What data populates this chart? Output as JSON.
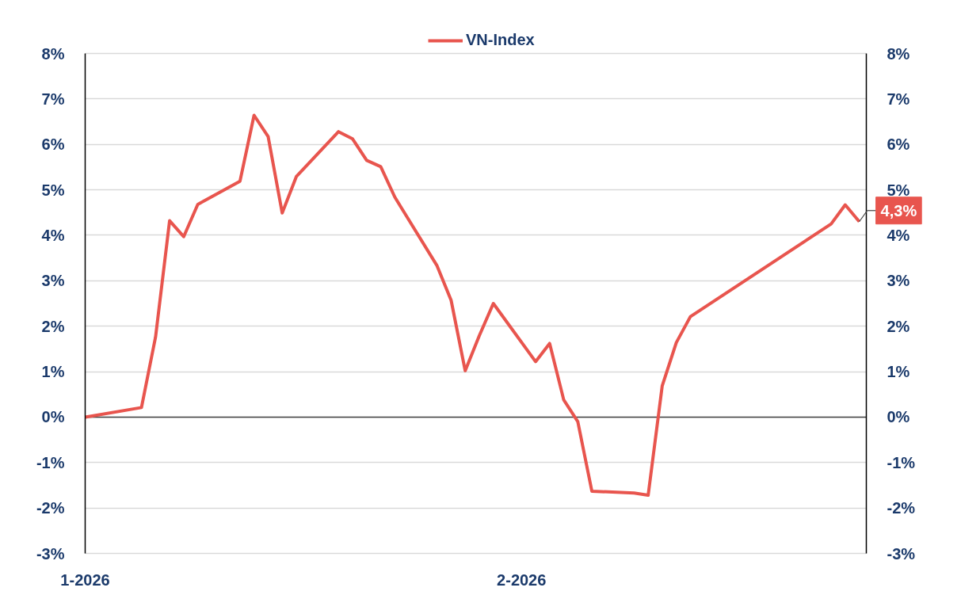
{
  "chart_data": {
    "type": "line",
    "x": [
      "2026-01-01",
      "2026-01-05",
      "2026-01-06",
      "2026-01-07",
      "2026-01-08",
      "2026-01-09",
      "2026-01-12",
      "2026-01-13",
      "2026-01-14",
      "2026-01-15",
      "2026-01-16",
      "2026-01-19",
      "2026-01-20",
      "2026-01-21",
      "2026-01-22",
      "2026-01-23",
      "2026-01-26",
      "2026-01-27",
      "2026-01-28",
      "2026-01-29",
      "2026-01-30",
      "2026-02-02",
      "2026-02-03",
      "2026-02-04",
      "2026-02-05",
      "2026-02-06",
      "2026-02-09",
      "2026-02-10",
      "2026-02-11",
      "2026-02-12",
      "2026-02-13",
      "2026-02-23",
      "2026-02-24",
      "2026-02-25"
    ],
    "series": [
      {
        "name": "VN-Index",
        "color": "#e8554e",
        "values": [
          0,
          0.21,
          1.76,
          4.32,
          3.97,
          4.68,
          5.19,
          6.64,
          6.17,
          4.49,
          5.29,
          6.28,
          6.12,
          5.65,
          5.51,
          4.84,
          3.33,
          2.57,
          1.02,
          1.79,
          2.5,
          1.22,
          1.62,
          0.38,
          -0.1,
          -1.63,
          -1.67,
          -1.72,
          0.69,
          1.64,
          2.21,
          4.25,
          4.67,
          4.3
        ]
      }
    ],
    "xlim": [
      "2026-01-01",
      "2026-02-25T12:00"
    ],
    "xticks": [
      {
        "value": "2026-01-01",
        "label": "1-2026"
      },
      {
        "value": "2026-02-01",
        "label": "2-2026"
      }
    ],
    "ylim": [
      -3,
      8
    ],
    "yticks": [
      {
        "value": -3,
        "label": "-3%"
      },
      {
        "value": -2,
        "label": "-2%"
      },
      {
        "value": -1,
        "label": "-1%"
      },
      {
        "value": 0,
        "label": "0%"
      },
      {
        "value": 1,
        "label": "1%"
      },
      {
        "value": 2,
        "label": "2%"
      },
      {
        "value": 3,
        "label": "3%"
      },
      {
        "value": 4,
        "label": "4%"
      },
      {
        "value": 5,
        "label": "5%"
      },
      {
        "value": 6,
        "label": "6%"
      },
      {
        "value": 7,
        "label": "7%"
      },
      {
        "value": 8,
        "label": "8%"
      }
    ],
    "y2lim": [
      -3,
      8
    ],
    "y2ticks": [
      {
        "value": -3,
        "label": "-3%"
      },
      {
        "value": -2,
        "label": "-2%"
      },
      {
        "value": -1,
        "label": "-1%"
      },
      {
        "value": 0,
        "label": "0%"
      },
      {
        "value": 1,
        "label": "1%"
      },
      {
        "value": 2,
        "label": "2%"
      },
      {
        "value": 3,
        "label": "3%"
      },
      {
        "value": 4,
        "label": "4%"
      },
      {
        "value": 5,
        "label": "5%"
      },
      {
        "value": 6,
        "label": "6%"
      },
      {
        "value": 7,
        "label": "7%"
      },
      {
        "value": 8,
        "label": "8%"
      }
    ],
    "grid": "y",
    "legend": "top",
    "ref_lines": [
      {
        "axis": "y",
        "value": 0,
        "color": "#404040"
      }
    ],
    "annotations": [
      {
        "text": "4,3%",
        "x": "2026-02-25",
        "y": 4.3
      }
    ]
  }
}
